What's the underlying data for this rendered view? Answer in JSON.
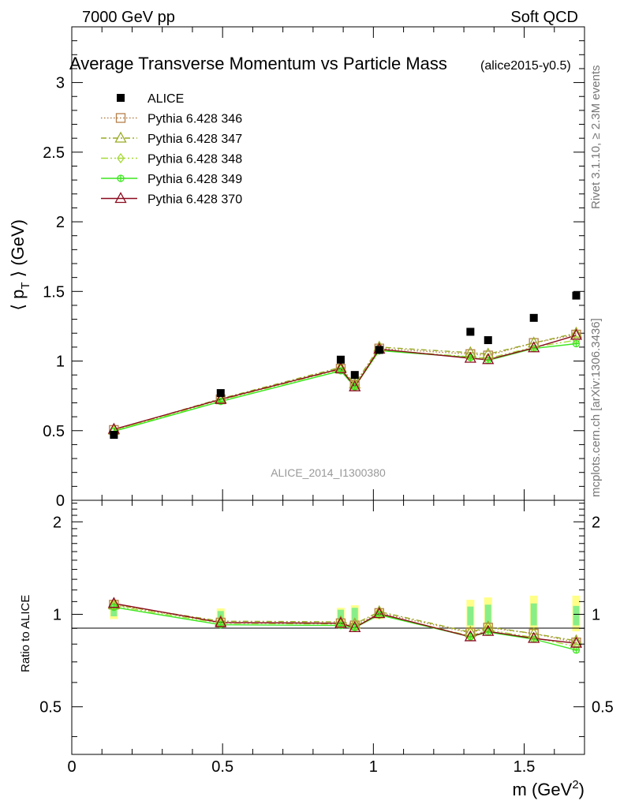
{
  "header": {
    "left": "7000 GeV pp",
    "right": "Soft QCD"
  },
  "chart_data": {
    "type": "line",
    "title": "Average Transverse Momentum vs Particle Mass",
    "title_tag": "(alice2015-y0.5)",
    "watermark": "ALICE_2014_I1300380",
    "side_label_top": "Rivet 3.1.10, ≥ 2.3M events",
    "side_label_bottom": "mcplots.cern.ch [arXiv:1306.3436]",
    "xlabel": "m (GeV",
    "xlabel_sup": "2",
    "xlabel_end": ")",
    "ylabel": "⟨ p",
    "ylabel_sub": "T",
    "ylabel_end": " ⟩ (GeV)",
    "ratio_ylabel": "Ratio to ALICE",
    "xlim": [
      0,
      1.7
    ],
    "ylim": [
      0,
      3.4
    ],
    "ratio_ylim": [
      0.35,
      2.35
    ],
    "ratio_log": true,
    "x_ticks": [
      "0",
      "0.5",
      "1",
      "1.5"
    ],
    "y_ticks": [
      "0",
      "0.5",
      "1",
      "1.5",
      "2",
      "2.5",
      "3"
    ],
    "ratio_ticks": [
      "0.5",
      "1",
      "2"
    ],
    "legend_position": "top-left",
    "data": {
      "name": "ALICE",
      "x": [
        0.1396,
        0.4937,
        0.8917,
        0.9383,
        1.0195,
        1.3217,
        1.3803,
        1.5318,
        1.6725
      ],
      "y": [
        0.47,
        0.77,
        1.01,
        0.9,
        1.08,
        1.21,
        1.15,
        1.31,
        1.47
      ]
    },
    "series": [
      {
        "name": "Pythia 6.428 346",
        "color": "#b5804a",
        "marker": "square-open",
        "dash": "1.5,2.5",
        "y": [
          0.505,
          0.725,
          0.945,
          0.83,
          1.09,
          1.05,
          1.04,
          1.13,
          1.19
        ],
        "ratio": [
          1.075,
          0.94,
          0.935,
          0.92,
          1.01,
          0.87,
          0.905,
          0.865,
          0.81
        ]
      },
      {
        "name": "Pythia 6.428 347",
        "color": "#9aab24",
        "marker": "triangle-open",
        "dash": "7,3,2,3",
        "y": [
          0.505,
          0.73,
          0.955,
          0.835,
          1.1,
          1.06,
          1.05,
          1.13,
          1.2
        ],
        "ratio": [
          1.075,
          0.95,
          0.945,
          0.93,
          1.02,
          0.875,
          0.91,
          0.865,
          0.82
        ]
      },
      {
        "name": "Pythia 6.428 348",
        "color": "#a8d93a",
        "marker": "diamond-open",
        "dash": "9,3,2,3,2,3",
        "y": [
          0.5,
          0.72,
          0.94,
          0.825,
          1.08,
          1.03,
          1.02,
          1.1,
          1.15
        ],
        "ratio": [
          1.065,
          0.935,
          0.93,
          0.915,
          1.0,
          0.85,
          0.89,
          0.84,
          0.785
        ]
      },
      {
        "name": "Pythia 6.428 349",
        "color": "#3ce61e",
        "marker": "plus-circle",
        "dash": "",
        "y": [
          0.495,
          0.71,
          0.93,
          0.815,
          1.075,
          1.025,
          1.005,
          1.09,
          1.125
        ],
        "ratio": [
          1.055,
          0.925,
          0.92,
          0.905,
          0.995,
          0.845,
          0.875,
          0.83,
          0.765
        ]
      },
      {
        "name": "Pythia 6.428 370",
        "color": "#8b0a1e",
        "marker": "triangle-open",
        "dash": "",
        "y": [
          0.51,
          0.725,
          0.945,
          0.815,
          1.085,
          1.02,
          1.01,
          1.095,
          1.185
        ],
        "ratio": [
          1.085,
          0.94,
          0.935,
          0.905,
          1.005,
          0.845,
          0.88,
          0.835,
          0.805
        ]
      }
    ],
    "ratio_bands": {
      "yellow_color": "#ffff88",
      "green_color": "#88ee88",
      "x": [
        0.1396,
        0.4937,
        0.8917,
        0.9383,
        1.0195,
        1.3217,
        1.3803,
        1.5318,
        1.6725
      ],
      "yellow": [
        [
          0.965,
          1.11
        ],
        [
          0.955,
          1.045
        ],
        [
          0.95,
          1.05
        ],
        [
          0.94,
          1.07
        ],
        [
          0.965,
          1.04
        ],
        [
          0.885,
          1.115
        ],
        [
          0.9,
          1.135
        ],
        [
          0.885,
          1.15
        ],
        [
          0.88,
          1.15
        ]
      ],
      "green": [
        [
          0.985,
          1.085
        ],
        [
          0.975,
          1.025
        ],
        [
          0.965,
          1.035
        ],
        [
          0.955,
          1.05
        ],
        [
          0.985,
          1.025
        ],
        [
          0.92,
          1.06
        ],
        [
          0.93,
          1.075
        ],
        [
          0.92,
          1.085
        ],
        [
          0.92,
          1.065
        ]
      ]
    }
  }
}
